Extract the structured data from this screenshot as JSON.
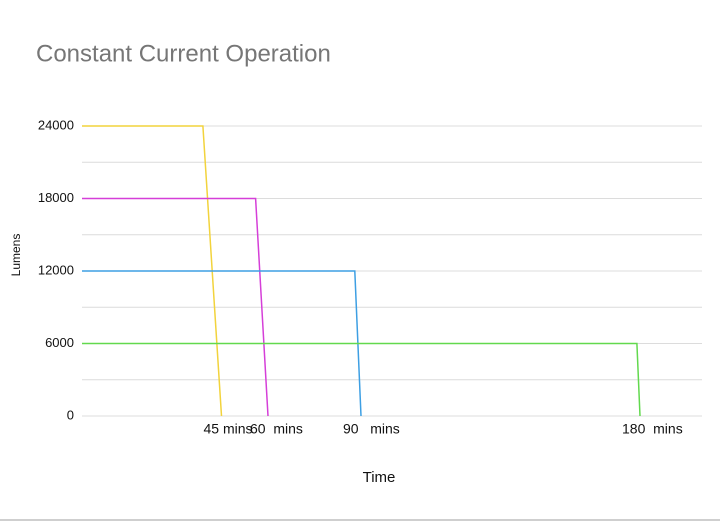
{
  "chart_data": {
    "type": "line",
    "title": "Constant Current Operation",
    "xlabel": "Time",
    "ylabel": "Lumens",
    "xlim": [
      0,
      200
    ],
    "xticks": [
      {
        "value": 45,
        "label": "45 mins"
      },
      {
        "value": 60,
        "label": "60  mins"
      },
      {
        "value": 90,
        "label": "90   mins"
      },
      {
        "value": 180,
        "label": "180  mins"
      }
    ],
    "ylim": [
      0,
      24000
    ],
    "yticks": [
      0,
      6000,
      12000,
      18000,
      24000
    ],
    "minor_yticks": [
      3000,
      9000,
      15000,
      21000
    ],
    "grid": true,
    "series": [
      {
        "color": "#f2d33c",
        "x": [
          0,
          39,
          45
        ],
        "values": [
          24000,
          24000,
          0
        ]
      },
      {
        "color": "#d53fd8",
        "x": [
          0,
          56,
          60
        ],
        "values": [
          18000,
          18000,
          0
        ]
      },
      {
        "color": "#3d9fe3",
        "x": [
          0,
          88,
          90
        ],
        "values": [
          12000,
          12000,
          0
        ]
      },
      {
        "color": "#62d94e",
        "x": [
          0,
          179,
          180
        ],
        "values": [
          6000,
          6000,
          0
        ]
      }
    ]
  }
}
